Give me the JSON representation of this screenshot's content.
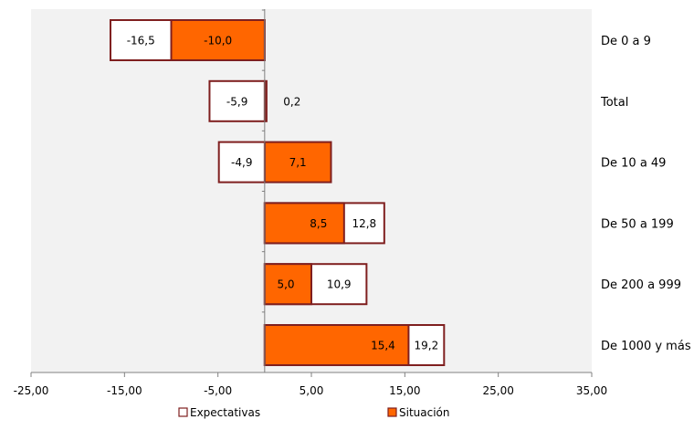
{
  "chart_data": {
    "type": "bar",
    "orientation": "horizontal",
    "categories": [
      "De 0 a 9",
      "Total",
      "De 10 a 49",
      "De 50 a 199",
      "De 200 a 999",
      "De 1000 y más"
    ],
    "series": [
      {
        "name": "Expectativas",
        "values": [
          -16.5,
          -5.9,
          -4.9,
          12.8,
          10.9,
          19.2
        ],
        "labels": [
          "-16,5",
          "-5,9",
          "-4,9",
          "12,8",
          "10,9",
          "19,2"
        ],
        "fill": "#ffffff",
        "stroke": "#7f1f1f"
      },
      {
        "name": "Situación",
        "values": [
          -10.0,
          0.2,
          7.1,
          8.5,
          5.0,
          15.4
        ],
        "labels": [
          "-10,0",
          "0,2",
          "7,1",
          "8,5",
          "5,0",
          "15,4"
        ],
        "fill": "#ff6600",
        "stroke": "#7f1f1f"
      }
    ],
    "xlim": [
      -25,
      35
    ],
    "xticks": [
      -25,
      -15,
      -5,
      5,
      15,
      25,
      35
    ],
    "xtick_labels": [
      "-25,00",
      "-15,00",
      "-5,00",
      "5,00",
      "15,00",
      "25,00",
      "35,00"
    ],
    "title": "",
    "xlabel": "",
    "ylabel": "",
    "legend_position": "bottom",
    "plot_background": "#f2f2f2",
    "colors": {
      "axis": "#808080",
      "text": "#000000"
    }
  }
}
